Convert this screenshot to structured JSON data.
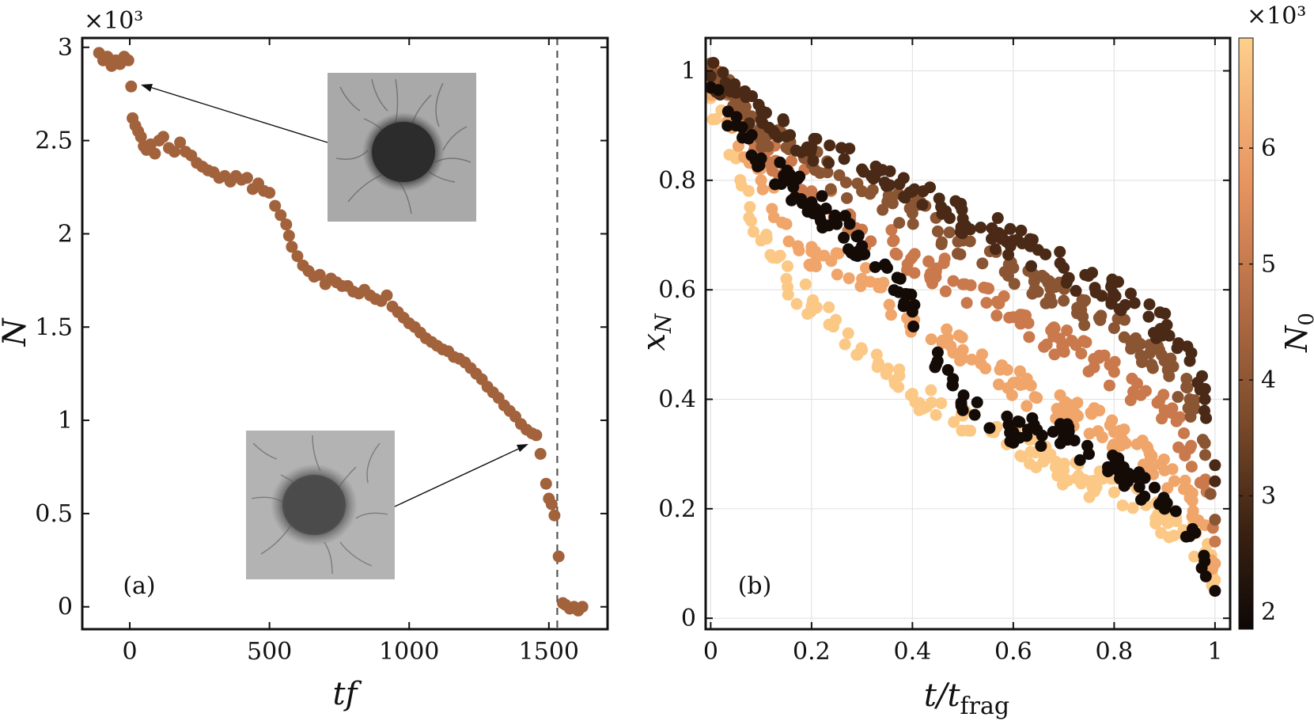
{
  "chart_data": [
    {
      "type": "scatter",
      "panel_label": "(a)",
      "xlabel": "tf",
      "ylabel": "N",
      "y_multiplier": "×10³",
      "xlim": [
        -170,
        1710
      ],
      "ylim": [
        -0.12,
        3.05
      ],
      "xticks": [
        0,
        500,
        1000,
        1500
      ],
      "xtick_labels": [
        "0",
        "500",
        "1000",
        "1500"
      ],
      "yticks": [
        0,
        0.5,
        1,
        1.5,
        2,
        2.5,
        3
      ],
      "ytick_labels": [
        "0",
        "0.5",
        "1",
        "1.5",
        "2",
        "2.5",
        "3"
      ],
      "grid": false,
      "marker_color": "#a2623c",
      "vertical_dashed_line_x": 1530,
      "series": [
        {
          "x": [
            -110,
            -95,
            -80,
            -65,
            -50,
            -35,
            -20,
            -5,
            5,
            10,
            20,
            30,
            40,
            50,
            60,
            75,
            90,
            105,
            120,
            140,
            160,
            180,
            200,
            220,
            240,
            260,
            280,
            300,
            320,
            340,
            360,
            380,
            400,
            420,
            440,
            460,
            480,
            500,
            520,
            540,
            560,
            570,
            580,
            600,
            620,
            640,
            660,
            680,
            700,
            720,
            740,
            760,
            780,
            800,
            820,
            840,
            860,
            880,
            900,
            920,
            940,
            960,
            980,
            1000,
            1020,
            1040,
            1060,
            1080,
            1100,
            1120,
            1140,
            1160,
            1180,
            1200,
            1220,
            1240,
            1260,
            1280,
            1300,
            1320,
            1340,
            1360,
            1380,
            1400,
            1420,
            1440,
            1455,
            1470,
            1490,
            1500,
            1510,
            1520,
            1535,
            1550,
            1560,
            1575,
            1590,
            1605,
            1620
          ],
          "y": [
            2.97,
            2.93,
            2.95,
            2.9,
            2.93,
            2.91,
            2.95,
            2.93,
            2.79,
            2.62,
            2.58,
            2.55,
            2.52,
            2.47,
            2.45,
            2.48,
            2.43,
            2.5,
            2.52,
            2.46,
            2.44,
            2.49,
            2.44,
            2.42,
            2.38,
            2.36,
            2.34,
            2.33,
            2.3,
            2.31,
            2.28,
            2.31,
            2.29,
            2.3,
            2.24,
            2.27,
            2.23,
            2.22,
            2.15,
            2.1,
            2.05,
            1.99,
            1.93,
            1.88,
            1.83,
            1.8,
            1.77,
            1.78,
            1.73,
            1.76,
            1.74,
            1.72,
            1.72,
            1.69,
            1.68,
            1.7,
            1.67,
            1.65,
            1.64,
            1.67,
            1.61,
            1.58,
            1.55,
            1.52,
            1.5,
            1.47,
            1.44,
            1.42,
            1.4,
            1.38,
            1.37,
            1.34,
            1.33,
            1.31,
            1.28,
            1.25,
            1.22,
            1.18,
            1.15,
            1.12,
            1.08,
            1.05,
            1.02,
            0.98,
            0.95,
            0.93,
            0.92,
            0.82,
            0.66,
            0.58,
            0.55,
            0.49,
            0.27,
            0.02,
            0.01,
            -0.01,
            0.0,
            -0.02,
            0.0
          ]
        }
      ],
      "insets": [
        "bacterial aggregate micrograph (early)",
        "bacterial aggregate micrograph (late)"
      ]
    },
    {
      "type": "scatter",
      "panel_label": "(b)",
      "xlabel": "t/t_frag",
      "ylabel": "x_N",
      "xlim": [
        -0.01,
        1.03
      ],
      "ylim": [
        -0.02,
        1.06
      ],
      "xticks": [
        0,
        0.2,
        0.4,
        0.6,
        0.8,
        1
      ],
      "xtick_labels": [
        "0",
        "0.2",
        "0.4",
        "0.6",
        "0.8",
        "1"
      ],
      "yticks": [
        0,
        0.2,
        0.4,
        0.6,
        0.8,
        1
      ],
      "ytick_labels": [
        "0",
        "0.2",
        "0.4",
        "0.6",
        "0.8",
        "1"
      ],
      "grid": true,
      "colorbar": {
        "label": "N_0",
        "multiplier": "×10³",
        "ticks": [
          2,
          3,
          4,
          5,
          6
        ],
        "range": [
          1.85,
          6.95
        ],
        "colors": [
          "#0d0806",
          "#3b2212",
          "#7a4a2a",
          "#b46d45",
          "#e6935f",
          "#f5b67a",
          "#fdd08b"
        ]
      },
      "series": [
        {
          "name": "N0=6900",
          "N0": 6.9,
          "color": "#fcc885",
          "x": [
            0,
            0.05,
            0.1,
            0.15,
            0.2,
            0.3,
            0.4,
            0.5,
            0.6,
            0.7,
            0.8,
            0.9,
            0.95,
            0.98,
            1.0
          ],
          "y": [
            0.95,
            0.84,
            0.69,
            0.62,
            0.57,
            0.49,
            0.41,
            0.37,
            0.32,
            0.27,
            0.23,
            0.18,
            0.15,
            0.12,
            0.07
          ]
        },
        {
          "name": "N0=6000",
          "N0": 6.0,
          "color": "#f0a56b",
          "x": [
            0,
            0.05,
            0.1,
            0.15,
            0.2,
            0.3,
            0.4,
            0.5,
            0.6,
            0.7,
            0.8,
            0.9,
            0.95,
            0.98,
            1.0
          ],
          "y": [
            0.98,
            0.9,
            0.8,
            0.72,
            0.67,
            0.62,
            0.55,
            0.49,
            0.43,
            0.38,
            0.34,
            0.27,
            0.22,
            0.17,
            0.1
          ]
        },
        {
          "name": "N0=5000",
          "N0": 5.0,
          "color": "#c9794c",
          "x": [
            0,
            0.05,
            0.1,
            0.15,
            0.2,
            0.3,
            0.4,
            0.5,
            0.6,
            0.7,
            0.8,
            0.9,
            0.95,
            0.98,
            1.0
          ],
          "y": [
            1.0,
            0.93,
            0.86,
            0.82,
            0.78,
            0.71,
            0.66,
            0.61,
            0.55,
            0.5,
            0.45,
            0.38,
            0.31,
            0.25,
            0.14
          ]
        },
        {
          "name": "N0=4000",
          "N0": 4.0,
          "color": "#8a5533",
          "x": [
            0,
            0.05,
            0.1,
            0.15,
            0.2,
            0.3,
            0.4,
            0.5,
            0.6,
            0.7,
            0.8,
            0.9,
            0.95,
            0.98,
            1.0
          ],
          "y": [
            1.0,
            0.95,
            0.89,
            0.86,
            0.83,
            0.78,
            0.74,
            0.69,
            0.64,
            0.58,
            0.53,
            0.47,
            0.4,
            0.32,
            0.18
          ]
        },
        {
          "name": "N0=3000",
          "N0": 3.0,
          "color": "#4a2a16",
          "x": [
            0,
            0.05,
            0.1,
            0.15,
            0.2,
            0.3,
            0.4,
            0.5,
            0.6,
            0.7,
            0.8,
            0.9,
            0.95,
            0.98,
            1.0
          ],
          "y": [
            0.99,
            0.96,
            0.91,
            0.88,
            0.86,
            0.82,
            0.78,
            0.73,
            0.69,
            0.64,
            0.59,
            0.53,
            0.47,
            0.4,
            0.25
          ]
        },
        {
          "name": "N0=2000",
          "N0": 2.0,
          "color": "#140b07",
          "x": [
            0,
            0.05,
            0.1,
            0.15,
            0.2,
            0.25,
            0.3,
            0.35,
            0.4,
            0.45,
            0.5,
            0.6,
            0.7,
            0.75,
            0.8,
            0.85,
            0.9,
            0.95,
            1.0
          ],
          "y": [
            0.97,
            0.9,
            0.84,
            0.8,
            0.76,
            0.72,
            0.68,
            0.64,
            0.56,
            0.47,
            0.38,
            0.34,
            0.33,
            0.3,
            0.28,
            0.24,
            0.2,
            0.15,
            0.05
          ]
        }
      ]
    }
  ]
}
